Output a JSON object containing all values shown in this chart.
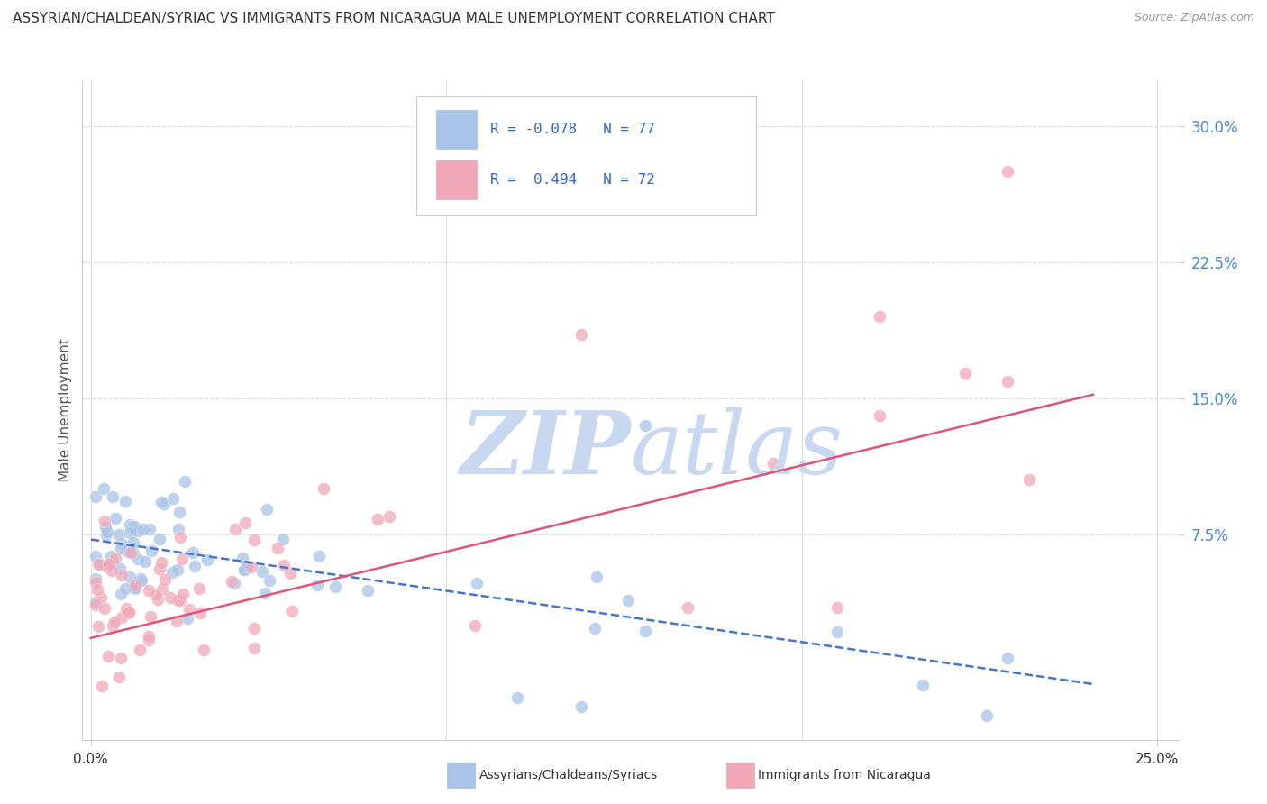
{
  "title": "ASSYRIAN/CHALDEAN/SYRIAC VS IMMIGRANTS FROM NICARAGUA MALE UNEMPLOYMENT CORRELATION CHART",
  "source": "Source: ZipAtlas.com",
  "ylabel": "Male Unemployment",
  "ytick_labels": [
    "30.0%",
    "22.5%",
    "15.0%",
    "7.5%"
  ],
  "ytick_values": [
    0.3,
    0.225,
    0.15,
    0.075
  ],
  "xtick_labels": [
    "0.0%",
    "25.0%"
  ],
  "xtick_values": [
    0.0,
    0.25
  ],
  "xlim": [
    -0.002,
    0.255
  ],
  "ylim": [
    -0.038,
    0.325
  ],
  "legend_label1": "Assyrians/Chaldeans/Syriacs",
  "legend_label2": "Immigrants from Nicaragua",
  "r1": "-0.078",
  "n1": "77",
  "r2": "0.494",
  "n2": "72",
  "color_blue": "#aac4e8",
  "color_pink": "#f0a8b8",
  "color_blue_line": "#4477cc",
  "color_pink_line": "#dd5577",
  "background_color": "#ffffff",
  "watermark_zip_color": "#c8d8f0",
  "watermark_atlas_color": "#c8d8f0",
  "grid_color": "#dddddd",
  "spine_color": "#cccccc",
  "ytick_color": "#4488dd",
  "xtick_color": "#333333",
  "title_color": "#333333",
  "source_color": "#999999",
  "ylabel_color": "#555555"
}
